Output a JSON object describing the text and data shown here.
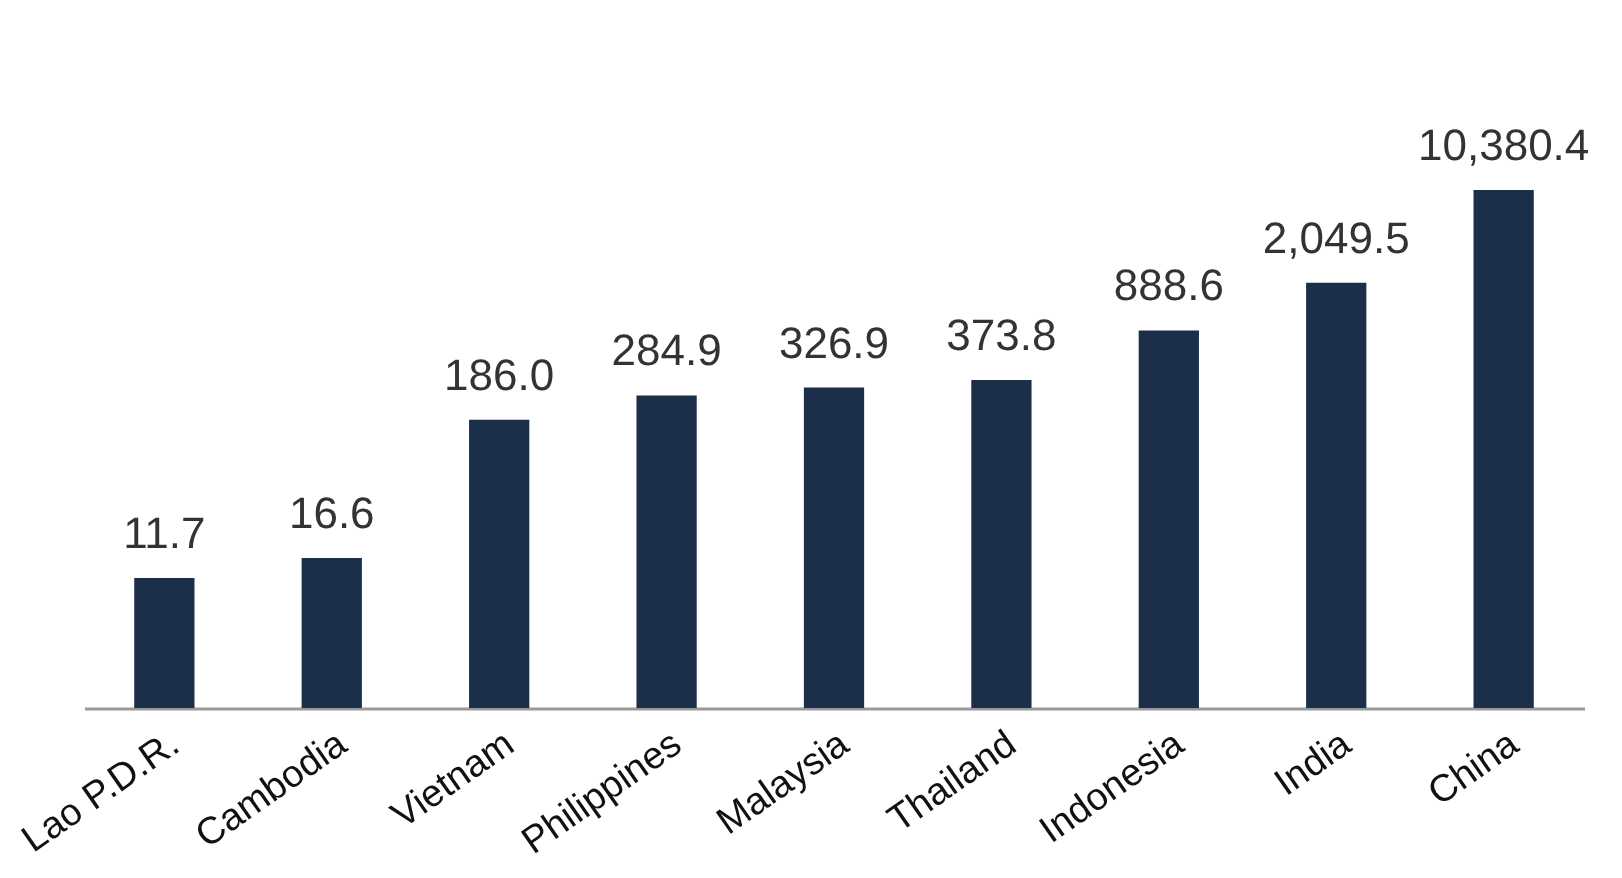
{
  "chart_data": {
    "type": "bar",
    "categories": [
      "Lao P.D.R.",
      "Cambodia",
      "Vietnam",
      "Philippines",
      "Malaysia",
      "Thailand",
      "Indonesia",
      "India",
      "China"
    ],
    "values": [
      11.7,
      16.6,
      186.0,
      284.9,
      326.9,
      373.8,
      888.6,
      2049.5,
      10380.4
    ],
    "value_labels": [
      "11.7",
      "16.6",
      "186.0",
      "284.9",
      "326.9",
      "373.8",
      "888.6",
      "2,049.5",
      "10,380.4"
    ],
    "color": "#1c2f4a",
    "log": true,
    "ylim": [
      1.2,
      10380.4
    ],
    "grid": false,
    "tick_labels": "x"
  }
}
